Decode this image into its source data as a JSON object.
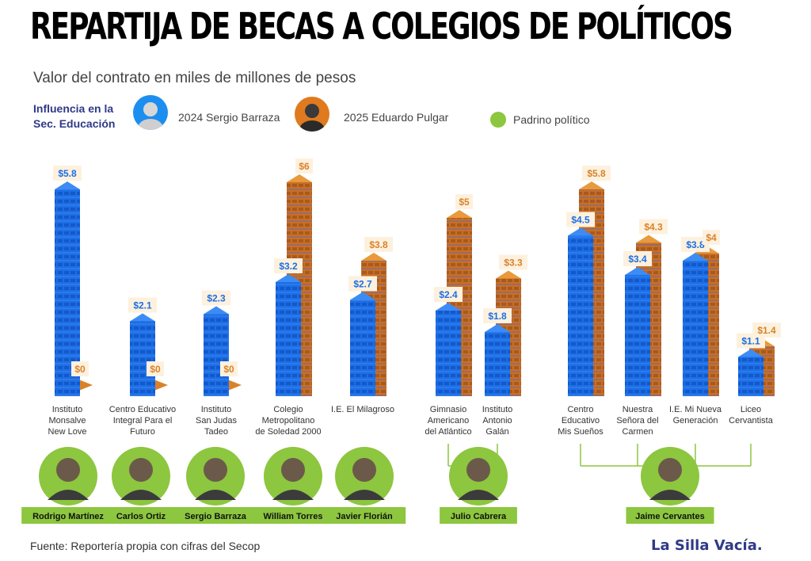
{
  "header": {
    "title": "REPARTIJA DE BECAS A COLEGIOS DE POLÍTICOS",
    "subtitle": "Valor del contrato en miles de millones de pesos"
  },
  "legend": {
    "title": "Influencia en la Sec. Educación",
    "series_2024": "2024 Sergio Barraza",
    "series_2025": "2025 Eduardo Pulgar",
    "padrino": "Padrino político"
  },
  "colors": {
    "blue": "#1c6ee6",
    "orange": "#d9822b",
    "green": "#8dc63f",
    "navy": "#2f3a87"
  },
  "chart_data": {
    "type": "bar",
    "categories": [
      "Instituto Monsalve New Love",
      "Centro Educativo Integral Para el Futuro",
      "Instituto San Judas Tadeo",
      "Colegio Metropolitano de Soledad 2000",
      "I.E. El Milagroso",
      "Gimnasio Americano del Atlántico",
      "Instituto Antonio Galán",
      "Centro Educativo Mis Sueños",
      "Nuestra Señora del Carmen",
      "I.E. Mi Nueva Generación",
      "Liceo Cervantista"
    ],
    "category_lines": [
      [
        "Instituto",
        "Monsalve",
        "New Love"
      ],
      [
        "Centro Educativo",
        "Integral Para el",
        "Futuro"
      ],
      [
        "Instituto",
        "San Judas",
        "Tadeo"
      ],
      [
        "Colegio",
        "Metropolitano",
        "de Soledad 2000"
      ],
      [
        "I.E. El Milagroso"
      ],
      [
        "Gimnasio",
        "Americano",
        "del Atlántico"
      ],
      [
        "Instituto",
        "Antonio",
        "Galán"
      ],
      [
        "Centro",
        "Educativo",
        "Mis Sueños"
      ],
      [
        "Nuestra",
        "Señora del",
        "Carmen"
      ],
      [
        "I.E. Mi Nueva",
        "Generación"
      ],
      [
        "Liceo",
        "Cervantista"
      ]
    ],
    "series": [
      {
        "name": "2024 Sergio Barraza",
        "values": [
          5.8,
          2.1,
          2.3,
          3.2,
          2.7,
          2.4,
          1.8,
          4.5,
          3.4,
          3.8,
          1.1
        ]
      },
      {
        "name": "2025 Eduardo Pulgar",
        "values": [
          0,
          0,
          0,
          6,
          3.8,
          5,
          3.3,
          5.8,
          4.3,
          4,
          1.4
        ]
      }
    ],
    "labels_2024": [
      "$5.8",
      "$2.1",
      "$2.3",
      "$3.2",
      "$2.7",
      "$2.4",
      "$1.8",
      "$4.5",
      "$3.4",
      "$3.8",
      "$1.1"
    ],
    "labels_2025": [
      "$0",
      "$0",
      "$0",
      "$6",
      "$3.8",
      "$5",
      "$3.3",
      "$5.8",
      "$4.3",
      "$4",
      "$1.4"
    ],
    "ylim": [
      0,
      6
    ]
  },
  "padrinos": [
    {
      "name": "Rodrigo Martínez",
      "schools": [
        0
      ]
    },
    {
      "name": "Carlos Ortiz",
      "schools": [
        1
      ]
    },
    {
      "name": "Sergio Barraza",
      "schools": [
        2
      ]
    },
    {
      "name": "William Torres",
      "schools": [
        3
      ]
    },
    {
      "name": "Javier Florián",
      "schools": [
        4
      ]
    },
    {
      "name": "Julio Cabrera",
      "schools": [
        5,
        6
      ]
    },
    {
      "name": "Jaime Cervantes",
      "schools": [
        7,
        8,
        9,
        10
      ]
    }
  ],
  "footer": {
    "source": "Fuente: Reportería propia con cifras del Secop",
    "brand": "La Silla Vacía."
  }
}
